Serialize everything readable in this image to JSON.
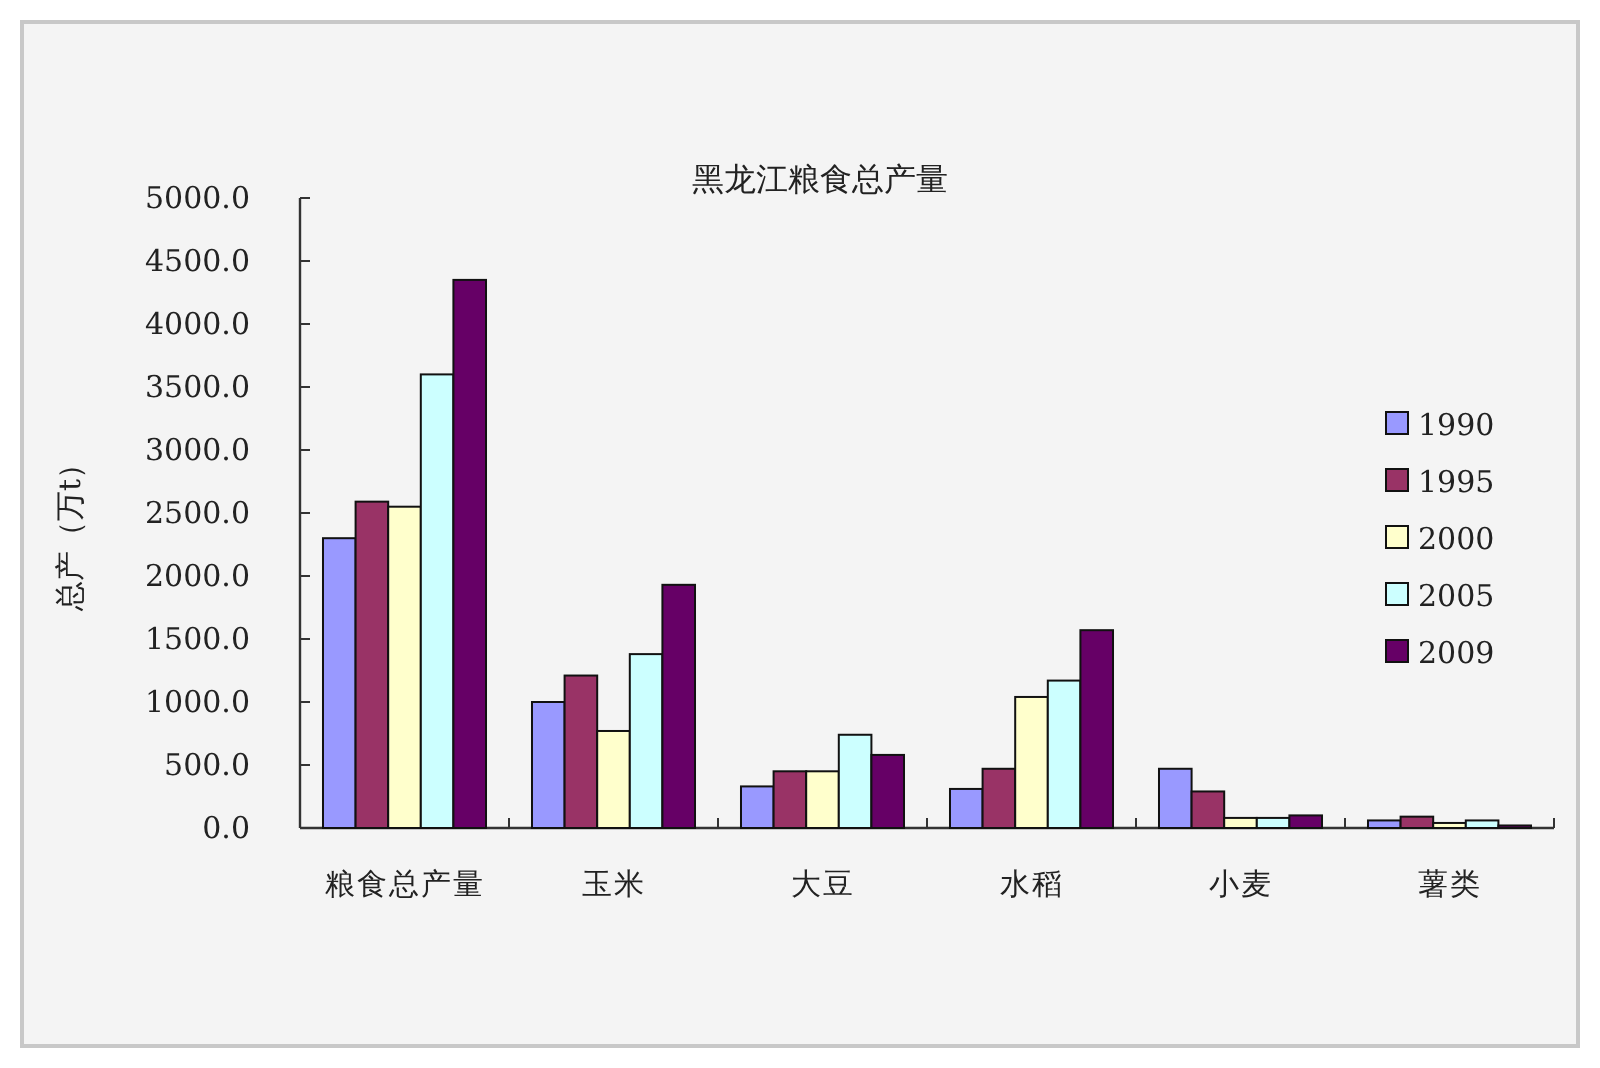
{
  "chart_data": {
    "type": "bar",
    "title": "黑龙江粮食总产量",
    "ylabel": "总产（万t）",
    "categories": [
      "粮食总产量",
      "玉米",
      "大豆",
      "水稻",
      "小麦",
      "薯类"
    ],
    "series": [
      {
        "name": "1990",
        "color": "#9999ff",
        "values": [
          2300,
          1000,
          330,
          310,
          470,
          60
        ]
      },
      {
        "name": "1995",
        "color": "#993366",
        "values": [
          2590,
          1210,
          450,
          470,
          290,
          90
        ]
      },
      {
        "name": "2000",
        "color": "#ffffcc",
        "values": [
          2550,
          770,
          450,
          1040,
          80,
          40
        ]
      },
      {
        "name": "2005",
        "color": "#ccffff",
        "values": [
          3600,
          1380,
          740,
          1170,
          80,
          60
        ]
      },
      {
        "name": "2009",
        "color": "#660066",
        "values": [
          4350,
          1930,
          580,
          1570,
          100,
          20
        ]
      }
    ],
    "ylim": [
      0,
      5000
    ],
    "yticks": [
      {
        "value": 0,
        "label": "0.0"
      },
      {
        "value": 500,
        "label": "500.0"
      },
      {
        "value": 1000,
        "label": "1000.0"
      },
      {
        "value": 1500,
        "label": "1500.0"
      },
      {
        "value": 2000,
        "label": "2000.0"
      },
      {
        "value": 2500,
        "label": "2500.0"
      },
      {
        "value": 3000,
        "label": "3000.0"
      },
      {
        "value": 3500,
        "label": "3500.0"
      },
      {
        "value": 4000,
        "label": "4000.0"
      },
      {
        "value": 4500,
        "label": "4500.0"
      },
      {
        "value": 5000,
        "label": "5000.0"
      }
    ],
    "legend": "right"
  }
}
